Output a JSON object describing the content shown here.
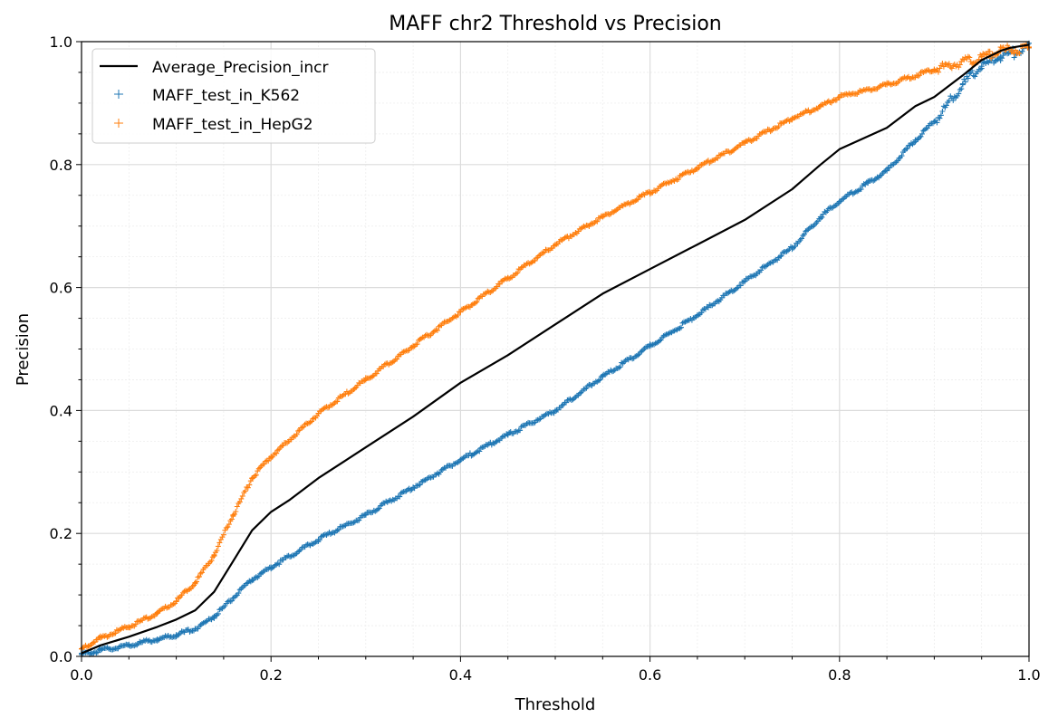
{
  "chart_data": {
    "type": "line",
    "title": "MAFF chr2 Threshold vs Precision",
    "xlabel": "Threshold",
    "ylabel": "Precision",
    "xlim": [
      0.0,
      1.0
    ],
    "ylim": [
      0.0,
      1.0
    ],
    "xticks": [
      "0.0",
      "0.2",
      "0.4",
      "0.6",
      "0.8",
      "1.0"
    ],
    "yticks": [
      "0.0",
      "0.2",
      "0.4",
      "0.6",
      "0.8",
      "1.0"
    ],
    "grid": true,
    "legend_position": "top-left",
    "series": [
      {
        "name": "Average_Precision_incr",
        "style": "line",
        "color": "#000000",
        "x": [
          0.0,
          0.02,
          0.05,
          0.08,
          0.1,
          0.12,
          0.14,
          0.16,
          0.18,
          0.2,
          0.22,
          0.25,
          0.3,
          0.35,
          0.4,
          0.45,
          0.5,
          0.55,
          0.6,
          0.65,
          0.7,
          0.75,
          0.78,
          0.8,
          0.85,
          0.88,
          0.9,
          0.93,
          0.95,
          0.97,
          0.98,
          1.0
        ],
        "y": [
          0.005,
          0.018,
          0.032,
          0.048,
          0.06,
          0.075,
          0.105,
          0.155,
          0.205,
          0.235,
          0.255,
          0.29,
          0.34,
          0.39,
          0.445,
          0.49,
          0.54,
          0.59,
          0.63,
          0.67,
          0.71,
          0.76,
          0.8,
          0.825,
          0.86,
          0.895,
          0.91,
          0.945,
          0.97,
          0.985,
          0.99,
          0.995
        ]
      },
      {
        "name": "MAFF_test_in_K562",
        "style": "scatter-plus",
        "color": "#1f77b4",
        "x": [
          0.0,
          0.02,
          0.05,
          0.08,
          0.1,
          0.12,
          0.14,
          0.16,
          0.18,
          0.2,
          0.25,
          0.3,
          0.35,
          0.4,
          0.45,
          0.5,
          0.55,
          0.6,
          0.65,
          0.7,
          0.75,
          0.78,
          0.8,
          0.83,
          0.85,
          0.88,
          0.9,
          0.93,
          0.95,
          0.97,
          1.0
        ],
        "y": [
          0.003,
          0.01,
          0.018,
          0.028,
          0.035,
          0.045,
          0.065,
          0.095,
          0.125,
          0.145,
          0.19,
          0.23,
          0.275,
          0.32,
          0.36,
          0.4,
          0.455,
          0.505,
          0.555,
          0.61,
          0.665,
          0.715,
          0.74,
          0.77,
          0.79,
          0.84,
          0.87,
          0.93,
          0.96,
          0.975,
          0.99
        ]
      },
      {
        "name": "MAFF_test_in_HepG2",
        "style": "scatter-plus",
        "color": "#ff7f0e",
        "x": [
          0.0,
          0.02,
          0.05,
          0.08,
          0.1,
          0.12,
          0.14,
          0.16,
          0.18,
          0.2,
          0.25,
          0.3,
          0.35,
          0.4,
          0.45,
          0.5,
          0.55,
          0.6,
          0.65,
          0.7,
          0.75,
          0.78,
          0.8,
          0.85,
          0.9,
          0.95,
          0.97,
          1.0
        ],
        "y": [
          0.012,
          0.03,
          0.048,
          0.07,
          0.09,
          0.12,
          0.165,
          0.23,
          0.29,
          0.325,
          0.395,
          0.45,
          0.505,
          0.56,
          0.615,
          0.67,
          0.715,
          0.755,
          0.795,
          0.835,
          0.875,
          0.895,
          0.91,
          0.93,
          0.955,
          0.975,
          0.985,
          0.99
        ]
      }
    ]
  }
}
